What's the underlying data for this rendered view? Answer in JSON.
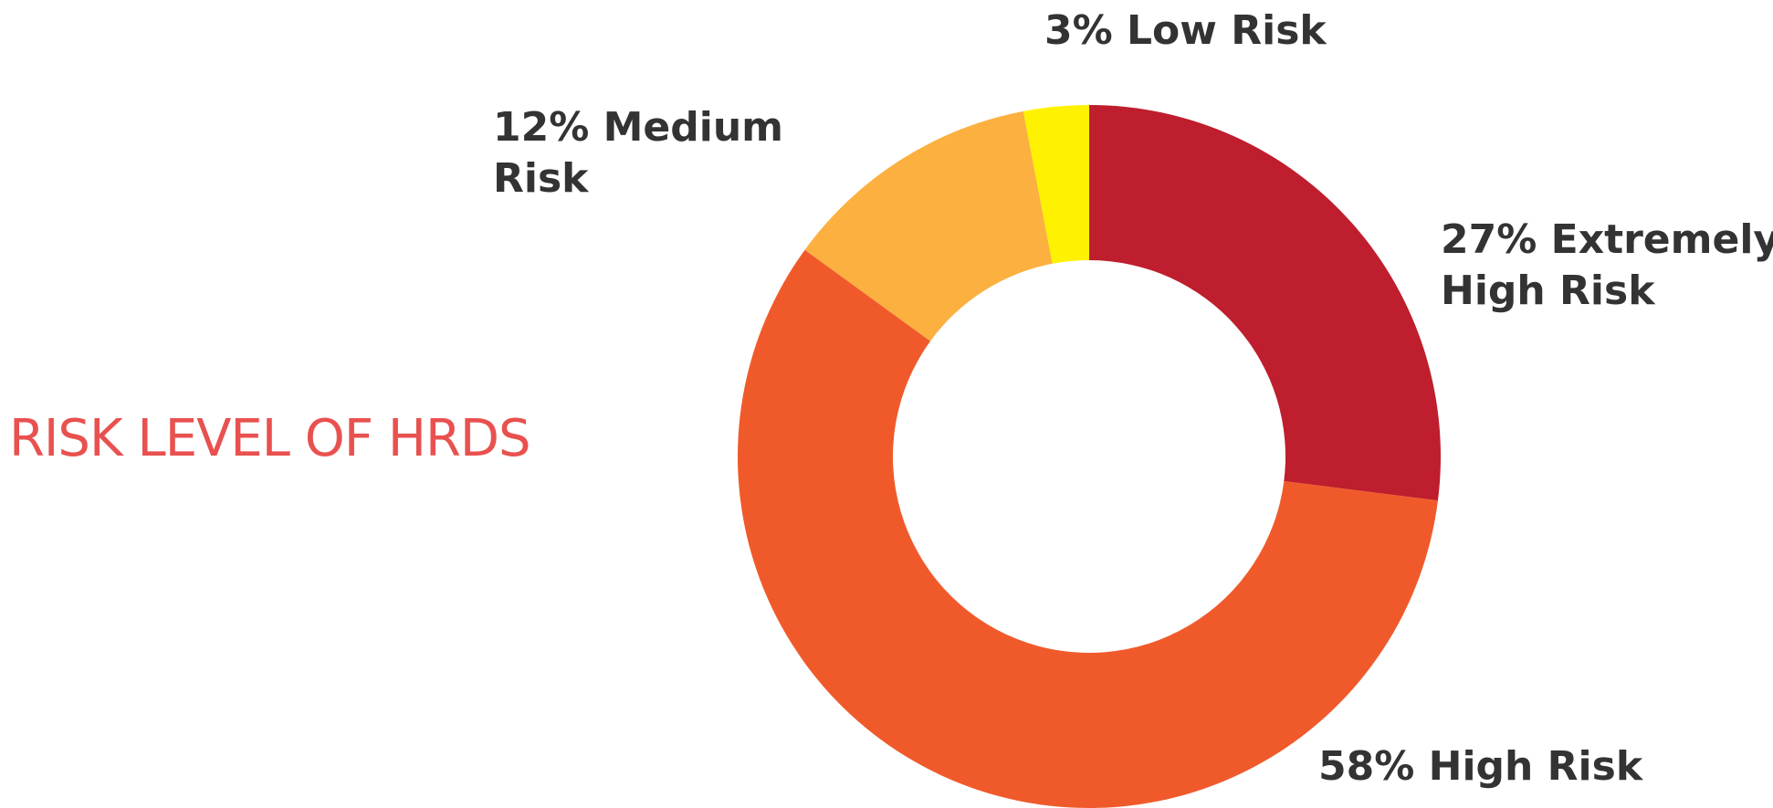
{
  "colors": {
    "title": "#e8514f",
    "label_text": "#333333"
  },
  "chart_data": {
    "type": "pie",
    "variant": "donut",
    "title": "RISK LEVEL OF HRDS",
    "series": [
      {
        "categories": [
          "Extremely High Risk",
          "High Risk",
          "Medium Risk",
          "Low Risk"
        ],
        "values": [
          27,
          58,
          12,
          3
        ],
        "unit": "%",
        "colors": [
          "#be1e2d",
          "#f05a2b",
          "#fbb040",
          "#fff200"
        ]
      }
    ],
    "data_labels": [
      {
        "line1": "27% Extremely",
        "line2": "High Risk"
      },
      {
        "line1": "58% High Risk",
        "line2": ""
      },
      {
        "line1": "12% Medium",
        "line2": "Risk"
      },
      {
        "line1": "3% Low Risk",
        "line2": ""
      }
    ],
    "start": "12 o'clock",
    "direction": "clockwise",
    "legend": "none"
  }
}
